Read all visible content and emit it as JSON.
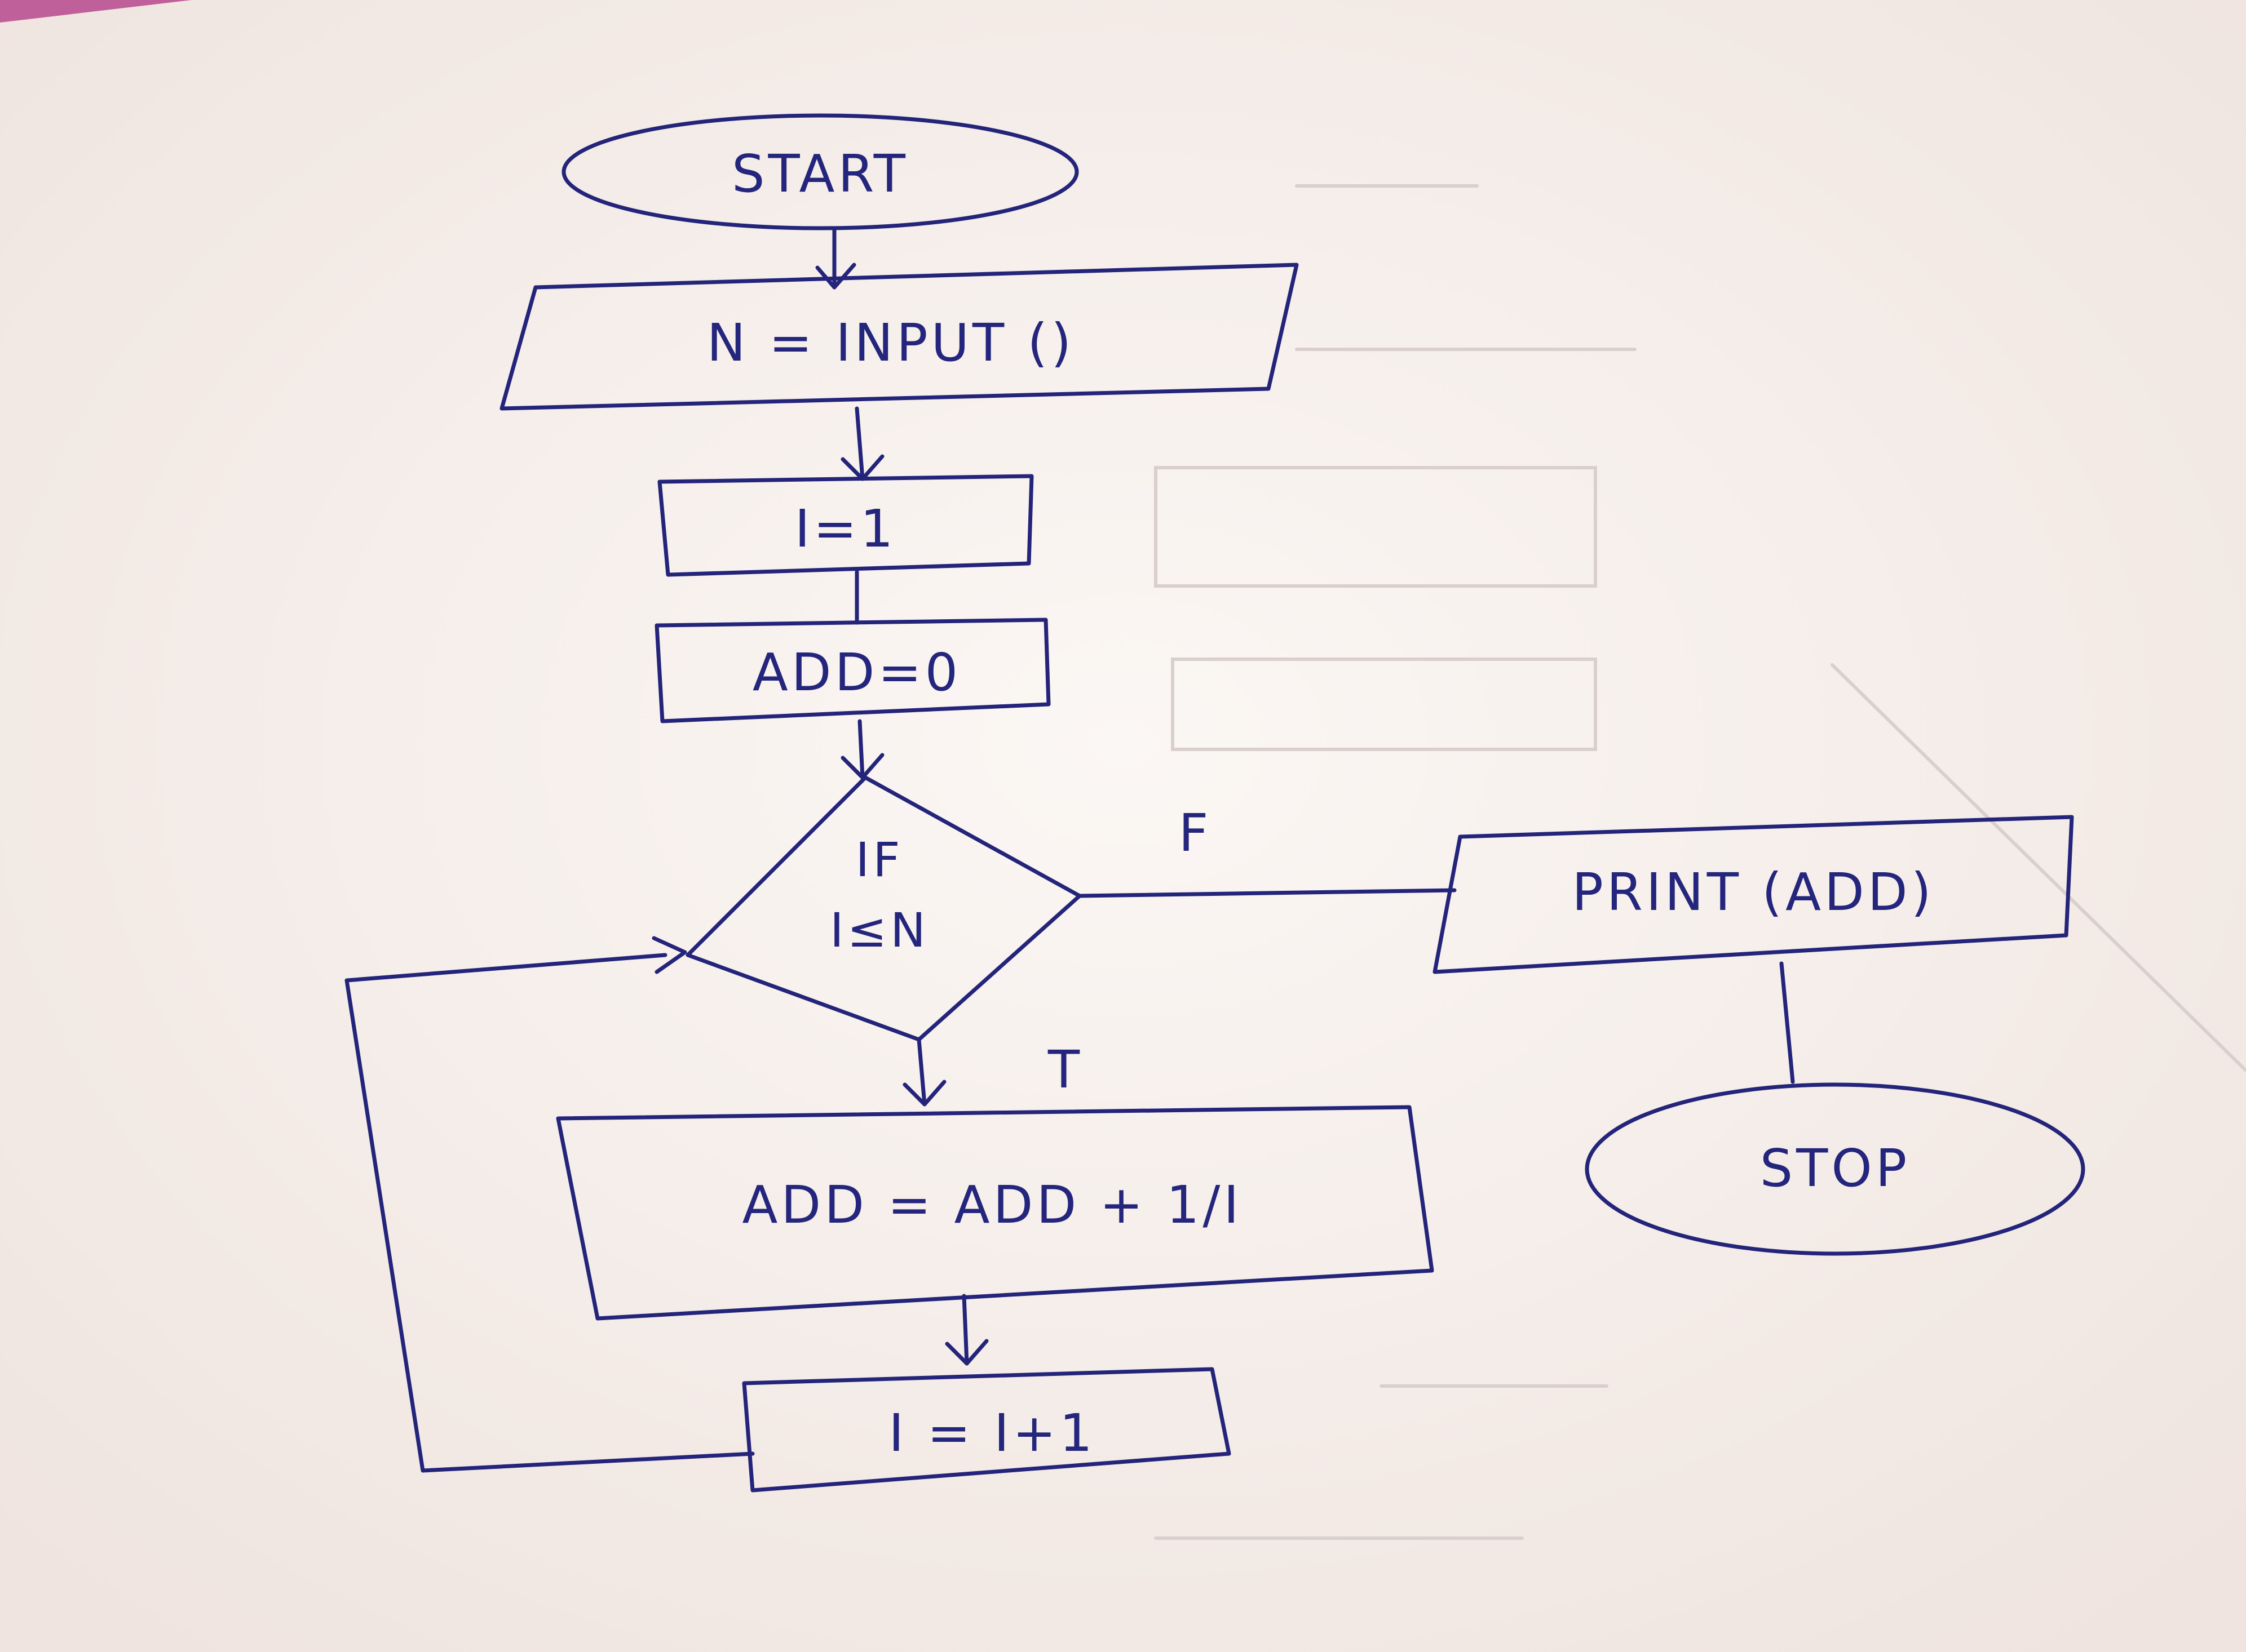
{
  "flowchart": {
    "start": "START",
    "input": "N = INPUT ()",
    "init_i": "I=1",
    "init_add": "ADD=0",
    "decision_line1": "IF",
    "decision_line2": "I≤N",
    "false_label": "F",
    "true_label": "T",
    "print": "PRINT (ADD)",
    "stop": "STOP",
    "accumulate": "ADD = ADD + 1/I",
    "increment": "I = I+1"
  },
  "colors": {
    "ink": "#23247a",
    "paper": "#f6efeb",
    "corner_magenta": "#c0609a"
  }
}
